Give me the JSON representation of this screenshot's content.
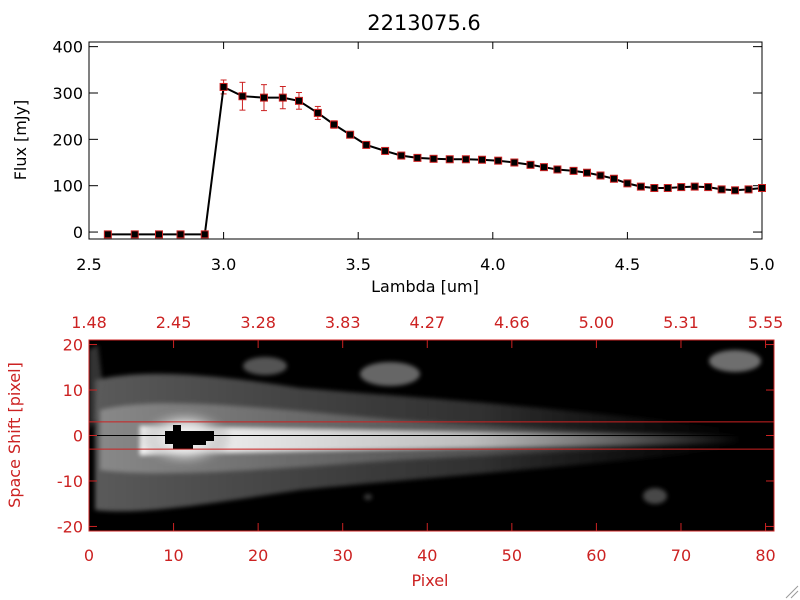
{
  "chart_data": [
    {
      "type": "line",
      "title": "2213075.6",
      "xlabel": "Lambda [um]",
      "ylabel": "Flux [mJy]",
      "xlim": [
        2.5,
        5.0
      ],
      "ylim": [
        -15,
        410
      ],
      "xticks": [
        2.5,
        3.0,
        3.5,
        4.0,
        4.5,
        5.0
      ],
      "xtick_labels": [
        "2.5",
        "3.0",
        "3.5",
        "4.0",
        "4.5",
        "5.0"
      ],
      "yticks": [
        0,
        100,
        200,
        300,
        400
      ],
      "ytick_labels": [
        "0",
        "100",
        "200",
        "300",
        "400"
      ],
      "grid": false,
      "line_color": "#000000",
      "marker_color": "#cc2222",
      "series": [
        {
          "x": [
            2.57,
            2.67,
            2.76,
            2.84,
            2.93,
            3.0,
            3.07,
            3.15,
            3.22,
            3.28,
            3.35,
            3.41,
            3.47,
            3.53,
            3.6,
            3.66,
            3.72,
            3.78,
            3.84,
            3.9,
            3.96,
            4.02,
            4.08,
            4.14,
            4.19,
            4.24,
            4.3,
            4.35,
            4.4,
            4.45,
            4.5,
            4.55,
            4.6,
            4.65,
            4.7,
            4.75,
            4.8,
            4.85,
            4.9,
            4.95,
            5.0
          ],
          "y": [
            -5,
            -5,
            -5,
            -5,
            -5,
            313,
            293,
            290,
            290,
            283,
            257,
            232,
            210,
            188,
            175,
            165,
            160,
            158,
            157,
            157,
            156,
            154,
            150,
            145,
            140,
            135,
            132,
            128,
            122,
            115,
            105,
            98,
            95,
            95,
            97,
            98,
            97,
            92,
            90,
            92,
            95
          ],
          "err": [
            0,
            0,
            0,
            0,
            0,
            15,
            30,
            28,
            24,
            18,
            14,
            8,
            6,
            5,
            4,
            4,
            4,
            4,
            4,
            4,
            4,
            4,
            4,
            4,
            4,
            4,
            4,
            4,
            4,
            4,
            4,
            4,
            4,
            4,
            4,
            4,
            4,
            4,
            4,
            4,
            4
          ]
        }
      ]
    },
    {
      "type": "heatmap",
      "xlabel": "Pixel",
      "ylabel": "Space Shift [pixel]",
      "xlim": [
        0,
        81
      ],
      "ylim": [
        -21,
        21
      ],
      "xticks": [
        0,
        10,
        20,
        30,
        40,
        50,
        60,
        70,
        80
      ],
      "xtick_labels": [
        "0",
        "10",
        "20",
        "30",
        "40",
        "50",
        "60",
        "70",
        "80"
      ],
      "yticks": [
        -20,
        -10,
        0,
        10,
        20
      ],
      "ytick_labels": [
        "-20",
        "-10",
        "0",
        "10",
        "20"
      ],
      "top_axis_tick_labels": [
        "1.48",
        "2.45",
        "3.28",
        "3.83",
        "4.27",
        "4.66",
        "5.00",
        "5.31",
        "5.55"
      ],
      "extraction_lines": [
        3,
        -3
      ],
      "trace_line_y": 0,
      "colormap": "gray",
      "axis_color": "#cc2222"
    }
  ]
}
